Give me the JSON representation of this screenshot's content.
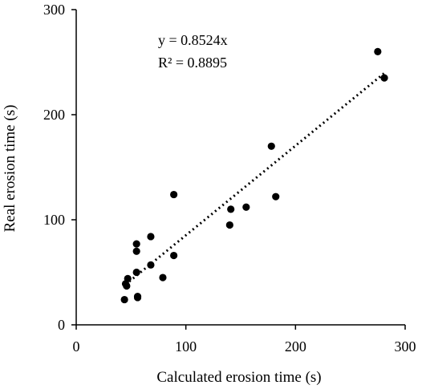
{
  "chart_data": {
    "type": "scatter",
    "xlabel": "Calculated erosion time (s)",
    "ylabel": "Real erosion time (s)",
    "xlim": [
      0,
      300
    ],
    "ylim": [
      0,
      300
    ],
    "x_ticks": [
      "0",
      "100",
      "200",
      "300"
    ],
    "y_ticks": [
      "0",
      "100",
      "200",
      "300"
    ],
    "x_tick_values": [
      0,
      100,
      200,
      300
    ],
    "y_tick_values": [
      0,
      100,
      200,
      300
    ],
    "grid": false,
    "legend": "none",
    "annotations": {
      "equation": "y = 0.8524x",
      "r_squared": "R² = 0.8895"
    },
    "trendline": {
      "style": "dotted",
      "slope": 0.8524,
      "x_range": [
        45,
        281
      ]
    },
    "series": [
      {
        "x": [
          44,
          45,
          46,
          47,
          55,
          55,
          55,
          56,
          56,
          68,
          68,
          79,
          89,
          89,
          140,
          141,
          155,
          178,
          182,
          275,
          281
        ],
        "y": [
          24,
          39,
          37,
          44,
          77,
          70,
          50,
          27,
          26,
          84,
          57,
          45,
          66,
          124,
          95,
          110,
          112,
          170,
          122,
          260,
          235
        ],
        "color": "#000000"
      }
    ]
  }
}
